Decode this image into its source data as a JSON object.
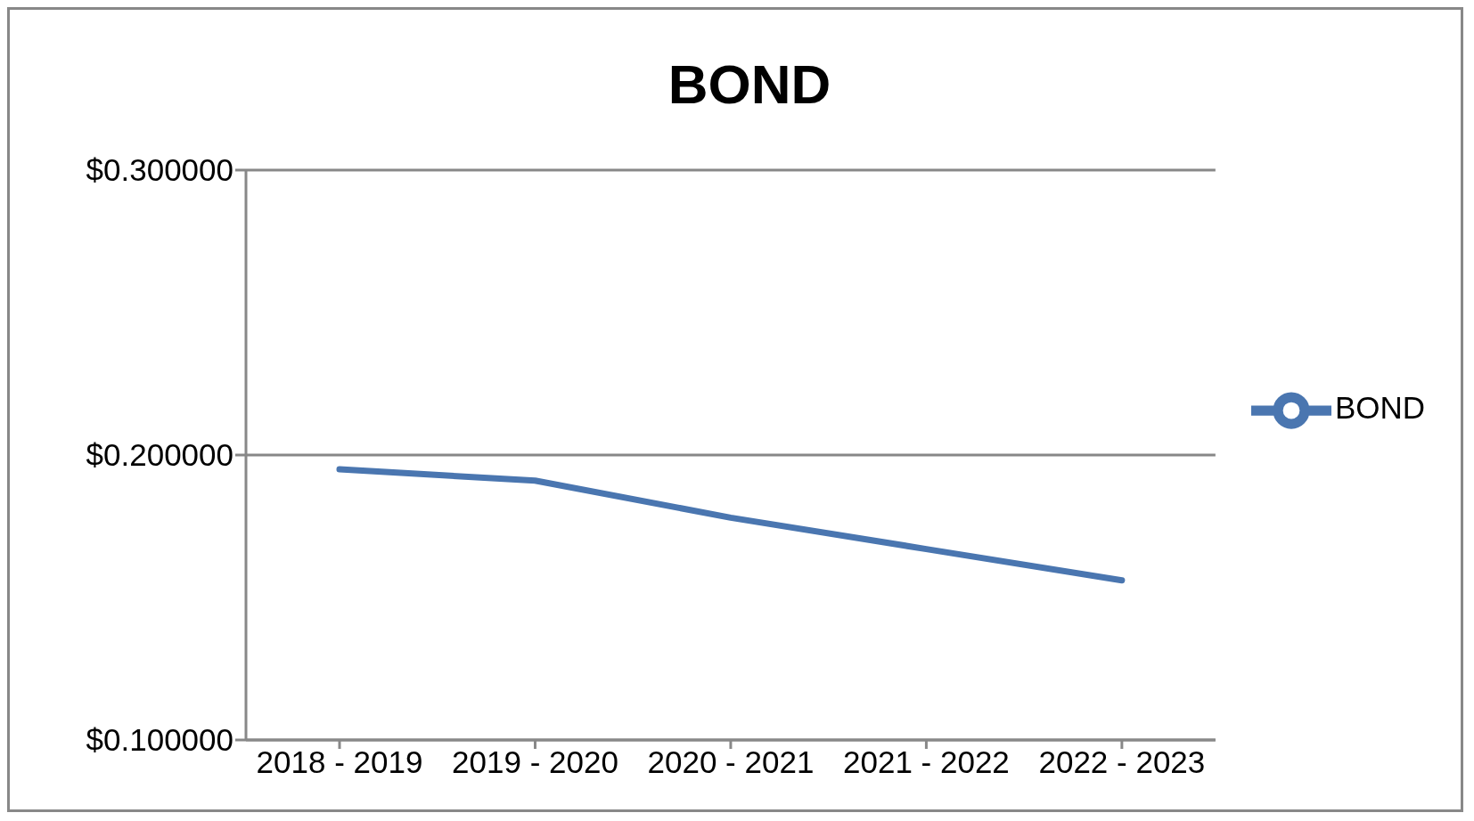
{
  "chart_data": {
    "type": "line",
    "title": "BOND",
    "categories": [
      "2018 - 2019",
      "2019 - 2020",
      "2020 - 2021",
      "2021 - 2022",
      "2022 - 2023"
    ],
    "series": [
      {
        "name": "BOND",
        "color": "#4a76b0",
        "values": [
          0.195,
          0.191,
          0.178,
          0.167,
          0.156
        ]
      }
    ],
    "ylim": [
      0.1,
      0.3
    ],
    "yticks": [
      {
        "value": 0.1,
        "label": "$0.100000"
      },
      {
        "value": 0.2,
        "label": "$0.200000"
      },
      {
        "value": 0.3,
        "label": "$0.300000"
      }
    ],
    "grid": "y",
    "legend": "right",
    "marker": "none",
    "line_style": "solid"
  }
}
